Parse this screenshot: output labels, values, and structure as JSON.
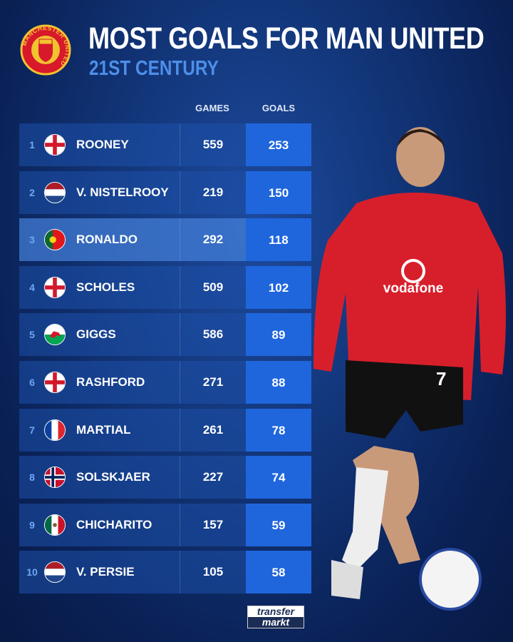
{
  "header": {
    "title": "MOST GOALS FOR MAN UNITED",
    "subtitle": "21ST CENTURY",
    "crest_text": "MANCHESTER UNITED"
  },
  "columns": {
    "games": "GAMES",
    "goals": "GOALS"
  },
  "rows": [
    {
      "rank": "1",
      "name": "ROONEY",
      "flag": "england",
      "games": "559",
      "goals": "253"
    },
    {
      "rank": "2",
      "name": "V. NISTELROOY",
      "flag": "netherlands",
      "games": "219",
      "goals": "150"
    },
    {
      "rank": "3",
      "name": "RONALDO",
      "flag": "portugal",
      "games": "292",
      "goals": "118",
      "highlighted": true
    },
    {
      "rank": "4",
      "name": "SCHOLES",
      "flag": "england",
      "games": "509",
      "goals": "102"
    },
    {
      "rank": "5",
      "name": "GIGGS",
      "flag": "wales",
      "games": "586",
      "goals": "89"
    },
    {
      "rank": "6",
      "name": "RASHFORD",
      "flag": "england",
      "games": "271",
      "goals": "88"
    },
    {
      "rank": "7",
      "name": "MARTIAL",
      "flag": "france",
      "games": "261",
      "goals": "78"
    },
    {
      "rank": "8",
      "name": "SOLSKJAER",
      "flag": "norway",
      "games": "227",
      "goals": "74"
    },
    {
      "rank": "9",
      "name": "CHICHARITO",
      "flag": "mexico",
      "games": "157",
      "goals": "59"
    },
    {
      "rank": "10",
      "name": "V. PERSIE",
      "flag": "netherlands",
      "games": "105",
      "goals": "58"
    }
  ],
  "player_photo": {
    "shirt_sponsor": "vodafone",
    "shirt_number": "7"
  },
  "footer": {
    "logo_line1": "transfer",
    "logo_line2": "markt"
  },
  "colors": {
    "background": "#0d2a66",
    "goals_cell": "#1f66dd",
    "subtitle": "#4d8fe8",
    "rank": "#6ea8f5"
  }
}
